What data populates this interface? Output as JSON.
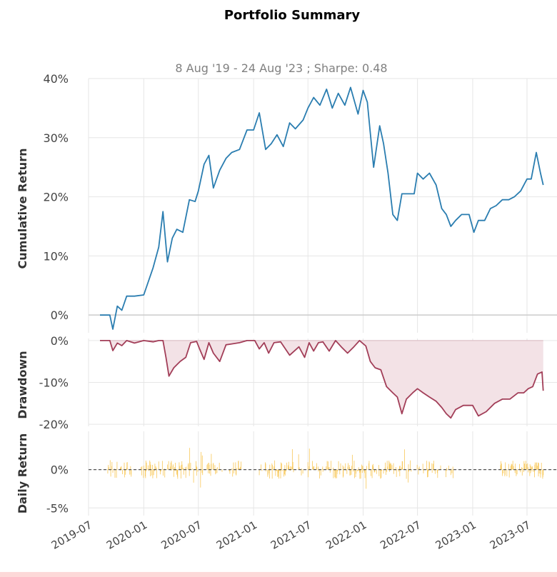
{
  "title": "Portfolio Summary",
  "subtitle": "8 Aug '19 - 24 Aug '23 ;  Sharpe: 0.48",
  "colors": {
    "cumulative": "#2a7db0",
    "drawdown": "#a23e58",
    "drawdown_fill": "#f3e2e6",
    "daily": "#f8c54f",
    "grid": "#e6e6e6",
    "text": "#444444"
  },
  "x_ticks": [
    "2019-07",
    "2020-01",
    "2020-07",
    "2021-01",
    "2021-07",
    "2022-01",
    "2022-07",
    "2023-01",
    "2023-07"
  ],
  "chart_data": [
    {
      "type": "line",
      "panel": "cumulative",
      "ylabel": "Cumulative Return",
      "ylim": [
        -3,
        40
      ],
      "y_ticks": [
        "0%",
        "10%",
        "20%",
        "30%",
        "40%"
      ],
      "y_tick_values": [
        0,
        10,
        20,
        30,
        40
      ],
      "x": [
        "2019-08-08",
        "2019-09-10",
        "2019-09-20",
        "2019-10-05",
        "2019-10-20",
        "2019-11-05",
        "2019-12-01",
        "2020-01-01",
        "2020-02-01",
        "2020-02-20",
        "2020-03-05",
        "2020-03-20",
        "2020-04-05",
        "2020-04-20",
        "2020-05-10",
        "2020-06-01",
        "2020-06-20",
        "2020-07-01",
        "2020-07-20",
        "2020-08-05",
        "2020-08-20",
        "2020-09-10",
        "2020-10-01",
        "2020-10-20",
        "2020-11-15",
        "2020-12-10",
        "2021-01-01",
        "2021-01-20",
        "2021-02-10",
        "2021-03-01",
        "2021-03-20",
        "2021-04-10",
        "2021-05-01",
        "2021-05-20",
        "2021-06-15",
        "2021-07-01",
        "2021-07-20",
        "2021-08-10",
        "2021-09-01",
        "2021-09-20",
        "2021-10-10",
        "2021-11-01",
        "2021-11-20",
        "2021-12-15",
        "2022-01-01",
        "2022-01-15",
        "2022-02-05",
        "2022-02-25",
        "2022-03-10",
        "2022-03-25",
        "2022-04-10",
        "2022-04-25",
        "2022-05-10",
        "2022-05-25",
        "2022-06-20",
        "2022-07-01",
        "2022-07-20",
        "2022-08-10",
        "2022-09-01",
        "2022-09-20",
        "2022-10-05",
        "2022-10-20",
        "2022-11-05",
        "2022-11-25",
        "2022-12-20",
        "2023-01-05",
        "2023-01-20",
        "2023-02-10",
        "2023-03-01",
        "2023-03-20",
        "2023-04-10",
        "2023-05-01",
        "2023-05-20",
        "2023-06-10",
        "2023-07-01",
        "2023-07-15",
        "2023-08-01",
        "2023-08-15",
        "2023-08-24"
      ],
      "y": [
        0,
        0,
        -2.4,
        1.5,
        0.8,
        3.2,
        3.2,
        3.4,
        8,
        11.5,
        17.5,
        9,
        13,
        14.5,
        14,
        19.5,
        19.2,
        21,
        25.5,
        27,
        21.5,
        24.5,
        26.5,
        27.5,
        28,
        31.3,
        31.3,
        34.2,
        28,
        29,
        30.5,
        28.5,
        32.5,
        31.5,
        33,
        35,
        36.8,
        35.5,
        38.2,
        35,
        37.5,
        35.5,
        38.5,
        34,
        38,
        36,
        25,
        32,
        29,
        24,
        17,
        16,
        20.5,
        20.5,
        20.5,
        24,
        23,
        24,
        22,
        18,
        17,
        15,
        16,
        17,
        17,
        14,
        16,
        16,
        18,
        18.5,
        19.5,
        19.5,
        20,
        21,
        23,
        23,
        27.5,
        24,
        22
      ]
    },
    {
      "type": "area",
      "panel": "drawdown",
      "ylabel": "Drawdown",
      "ylim": [
        -20.5,
        0.5
      ],
      "y_ticks": [
        "0%",
        "-10%",
        "-20%"
      ],
      "y_tick_values": [
        0,
        -10,
        -20
      ],
      "x": [
        "2019-08-08",
        "2019-09-10",
        "2019-09-20",
        "2019-10-05",
        "2019-10-20",
        "2019-11-05",
        "2019-12-01",
        "2020-01-01",
        "2020-02-01",
        "2020-02-20",
        "2020-03-05",
        "2020-03-15",
        "2020-03-25",
        "2020-04-10",
        "2020-05-01",
        "2020-05-20",
        "2020-06-05",
        "2020-06-25",
        "2020-07-05",
        "2020-07-20",
        "2020-08-05",
        "2020-08-20",
        "2020-09-10",
        "2020-10-01",
        "2020-10-20",
        "2020-11-15",
        "2020-12-10",
        "2021-01-05",
        "2021-01-20",
        "2021-02-05",
        "2021-02-20",
        "2021-03-10",
        "2021-04-01",
        "2021-05-01",
        "2021-06-01",
        "2021-06-20",
        "2021-07-05",
        "2021-07-20",
        "2021-08-05",
        "2021-08-20",
        "2021-09-10",
        "2021-10-01",
        "2021-10-20",
        "2021-11-10",
        "2021-12-01",
        "2021-12-20",
        "2022-01-10",
        "2022-01-25",
        "2022-02-10",
        "2022-03-01",
        "2022-03-20",
        "2022-04-10",
        "2022-04-25",
        "2022-05-10",
        "2022-05-25",
        "2022-06-15",
        "2022-07-01",
        "2022-07-20",
        "2022-08-10",
        "2022-09-01",
        "2022-09-20",
        "2022-10-05",
        "2022-10-20",
        "2022-11-05",
        "2022-12-01",
        "2023-01-01",
        "2023-01-20",
        "2023-02-15",
        "2023-03-15",
        "2023-04-10",
        "2023-05-05",
        "2023-06-01",
        "2023-06-20",
        "2023-07-05",
        "2023-07-20",
        "2023-08-05",
        "2023-08-20",
        "2023-08-24"
      ],
      "y": [
        0,
        0,
        -2.4,
        -0.6,
        -1.2,
        0,
        -0.6,
        0,
        -0.3,
        0,
        0,
        -4,
        -8.5,
        -6.5,
        -5,
        -4,
        -0.5,
        -0.2,
        -2,
        -4.5,
        -0.5,
        -3,
        -5,
        -1,
        -0.8,
        -0.5,
        0,
        0,
        -2,
        -0.5,
        -3,
        -0.5,
        -0.3,
        -3.5,
        -1.5,
        -4,
        -0.5,
        -2.5,
        -0.5,
        -0.3,
        -2.5,
        0,
        -1.5,
        -3,
        -1.5,
        0,
        -1.3,
        -5,
        -6.5,
        -7,
        -11,
        -12.5,
        -13.5,
        -17.5,
        -14,
        -12.5,
        -11.5,
        -12.5,
        -13.5,
        -14.5,
        -16,
        -17.5,
        -18.5,
        -16.5,
        -15.5,
        -15.5,
        -18,
        -17,
        -15,
        -14,
        -14,
        -12.5,
        -12.5,
        -11.5,
        -11,
        -8,
        -7.5,
        -12
      ]
    },
    {
      "type": "bar",
      "panel": "daily",
      "ylabel": "Daily Return",
      "ylim": [
        -6,
        5
      ],
      "y_ticks": [
        "0%",
        "-5%"
      ],
      "y_tick_values": [
        0,
        -5
      ],
      "active_ranges": [
        [
          "2019-09-01",
          "2019-11-20"
        ],
        [
          "2019-12-20",
          "2020-07-15"
        ],
        [
          "2020-07-25",
          "2020-09-20"
        ],
        [
          "2020-10-10",
          "2020-11-20"
        ],
        [
          "2021-01-20",
          "2021-06-15"
        ],
        [
          "2021-06-25",
          "2022-06-10"
        ],
        [
          "2022-06-30",
          "2022-09-20"
        ],
        [
          "2022-10-01",
          "2022-10-31"
        ],
        [
          "2023-04-01",
          "2023-08-24"
        ]
      ]
    }
  ]
}
